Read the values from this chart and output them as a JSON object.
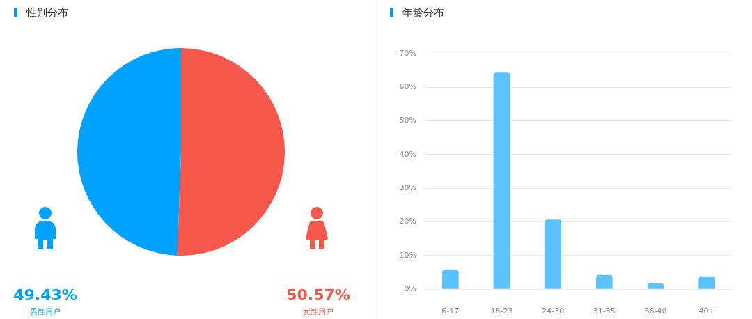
{
  "chart_data": [
    {
      "type": "pie",
      "title": "性别分布",
      "categories": [
        "女性用户",
        "男性用户"
      ],
      "values": [
        50.57,
        49.43
      ],
      "colors": [
        "#f5584a",
        "#00a2ff"
      ],
      "value_labels": [
        "50.57%",
        "49.43%"
      ]
    },
    {
      "type": "bar",
      "title": "年龄分布",
      "categories": [
        "6-17",
        "18-23",
        "24-30",
        "31-35",
        "36-40",
        "40+"
      ],
      "values": [
        5.7,
        64.3,
        20.6,
        4.1,
        1.6,
        3.7
      ],
      "color": "#5bc2ff",
      "ylim": [
        0,
        70
      ],
      "yticks": [
        {
          "value": 0,
          "label": "0%"
        },
        {
          "value": 10,
          "label": "10%"
        },
        {
          "value": 20,
          "label": "20%"
        },
        {
          "value": 30,
          "label": "30%"
        },
        {
          "value": 40,
          "label": "40%"
        },
        {
          "value": 50,
          "label": "50%"
        },
        {
          "value": 60,
          "label": "60%"
        },
        {
          "value": 70,
          "label": "70%"
        }
      ],
      "grid": "y"
    }
  ]
}
